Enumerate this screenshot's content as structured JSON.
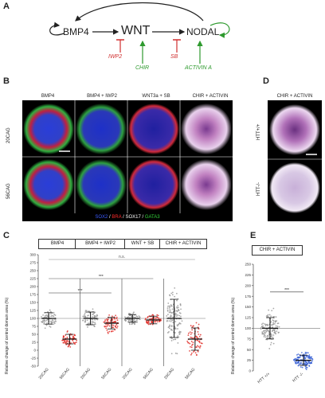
{
  "panel_labels": {
    "a": "A",
    "b": "B",
    "c": "C",
    "d": "D",
    "e": "E"
  },
  "schema": {
    "bmp4": "BMP4",
    "wnt": "WNT",
    "nodal": "NODAL",
    "iwp2": "IWP2",
    "chir": "CHIR",
    "sb": "SB",
    "activin": "ACTIVIN A"
  },
  "panel_b": {
    "columns": [
      "BMP4",
      "BMP4 + IWP2",
      "WNT3a + SB",
      "CHIR + ACTIVIN"
    ],
    "rows": [
      "20CAG",
      "56CAG"
    ],
    "legend": {
      "sox2": "SOX2",
      "sep1": " / ",
      "bra": "BRA",
      "sep2": " / ",
      "sox17": "SOX17",
      "sep3": " / ",
      "gata3": "GATA3"
    },
    "colors": {
      "sox2": "#3b5bff",
      "bra": "#ff2a2a",
      "sox17": "#ffffff",
      "gata3": "#33d23a"
    }
  },
  "panel_d": {
    "column": "CHIR + ACTIVIN",
    "rows": [
      "HTT+/+",
      "HTT-/-"
    ]
  },
  "panel_c": {
    "groups": [
      "BMP4",
      "BMP4 + IWP2",
      "WNT + SB",
      "CHIR + ACTIVIN"
    ],
    "ylabel": "Relative change of central domain area (%)",
    "yticks": [
      "300",
      "275",
      "250",
      "225",
      "200",
      "175",
      "150",
      "125",
      "100",
      "75",
      "50",
      "25",
      "0",
      "-25",
      "-50"
    ],
    "xlabels": [
      "20CAG",
      "56CAG",
      "20CAG",
      "56CAG",
      "20CAG",
      "56CAG",
      "20CAG",
      "56CAG"
    ],
    "sig_ns": "n.s.",
    "sig_1": "***",
    "sig_2": "***"
  },
  "panel_e": {
    "title": "CHIR + ACTIVIN",
    "ylabel": "Relative change of central domain area (%)",
    "yticks": [
      "250",
      "225",
      "200",
      "175",
      "150",
      "125",
      "100",
      "75",
      "50",
      "25",
      "0"
    ],
    "xlabels": [
      "HTT +/+",
      "HTT -/-"
    ],
    "sig": "***"
  },
  "chart_data": [
    {
      "type": "scatter",
      "title": "",
      "ylabel": "Relative change of central domain area (%)",
      "ylim": [
        -50,
        300
      ],
      "categories": [
        "20CAG",
        "56CAG",
        "20CAG",
        "56CAG",
        "20CAG",
        "56CAG",
        "20CAG",
        "56CAG"
      ],
      "groups": [
        "BMP4",
        "BMP4 + IWP2",
        "WNT + SB",
        "CHIR + ACTIVIN"
      ],
      "means": [
        100,
        35,
        100,
        85,
        100,
        95,
        100,
        35
      ],
      "sd": [
        18,
        15,
        20,
        18,
        12,
        12,
        60,
        35
      ],
      "point_colors": [
        "#9a9a9a",
        "#e0302a",
        "#9a9a9a",
        "#e0302a",
        "#9a9a9a",
        "#e0302a",
        "#9a9a9a",
        "#e0302a"
      ]
    },
    {
      "type": "scatter",
      "title": "CHIR + ACTIVIN",
      "ylabel": "Relative change of central domain area (%)",
      "ylim": [
        0,
        250
      ],
      "categories": [
        "HTT +/+",
        "HTT -/-"
      ],
      "means": [
        100,
        25
      ],
      "sd": [
        25,
        12
      ],
      "point_colors": [
        "#9a9a9a",
        "#3b63d6"
      ]
    }
  ]
}
